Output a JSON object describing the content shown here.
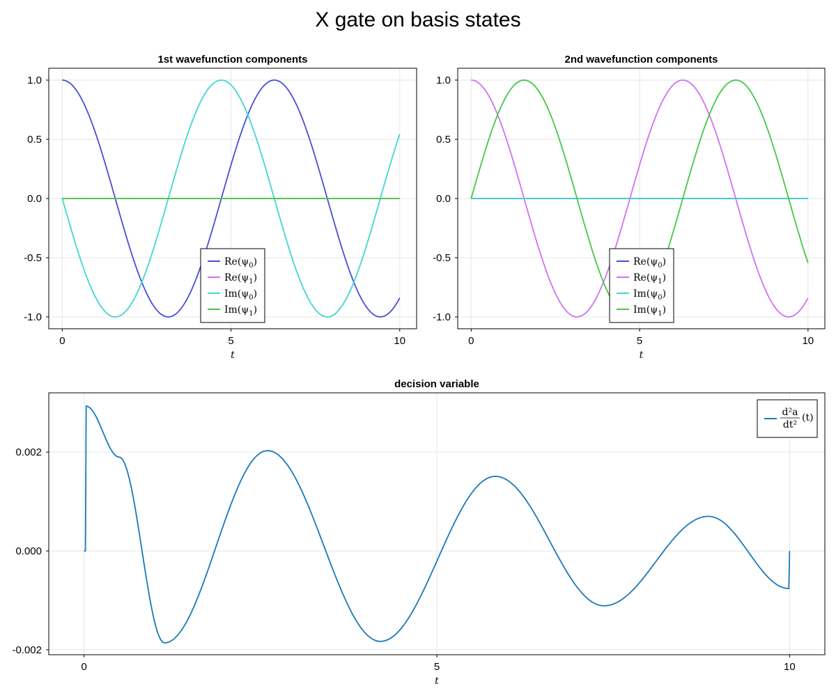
{
  "figure": {
    "title": "X gate on basis states"
  },
  "chart_data": [
    {
      "type": "line",
      "title": "1st wavefunction components",
      "xlabel": "t",
      "ylabel": "",
      "xlim": [
        -0.4,
        10.5
      ],
      "ylim": [
        -1.1,
        1.1
      ],
      "xticks": [
        0,
        5,
        10
      ],
      "yticks": [
        1.0,
        0.5,
        0.0,
        -0.5,
        -1.0
      ],
      "ytick_labels": [
        "1.0",
        "0.5",
        "0.0",
        "-0.5",
        "-1.0"
      ],
      "grid": true,
      "legend": {
        "placement": "lower-center"
      },
      "x_range": [
        0,
        10
      ],
      "series": [
        {
          "name": "Re(ψ₀)",
          "color": "#4b4bd6",
          "formula": "cos(t)",
          "x": [
            0,
            1,
            2,
            3,
            4,
            5,
            6,
            7,
            8,
            9,
            10
          ],
          "y": [
            1.0,
            0.54,
            -0.42,
            -0.99,
            -0.65,
            0.28,
            0.96,
            0.75,
            -0.15,
            -0.91,
            -0.84
          ]
        },
        {
          "name": "Re(ψ₁)",
          "color": "#d070f5",
          "formula": "0",
          "x": [
            0,
            10
          ],
          "y": [
            0,
            0
          ]
        },
        {
          "name": "Im(ψ₀)",
          "color": "#3fd6d2",
          "formula": "-sin(t)",
          "x": [
            0,
            1,
            2,
            3,
            4,
            5,
            6,
            7,
            8,
            9,
            10
          ],
          "y": [
            0.0,
            -0.84,
            -0.91,
            -0.14,
            0.76,
            0.96,
            0.28,
            -0.66,
            -0.99,
            -0.41,
            0.54
          ]
        },
        {
          "name": "Im(ψ₁)",
          "color": "#44c844",
          "formula": "0",
          "x": [
            0,
            10
          ],
          "y": [
            0,
            0
          ]
        }
      ]
    },
    {
      "type": "line",
      "title": "2nd wavefunction components",
      "xlabel": "t",
      "ylabel": "",
      "xlim": [
        -0.4,
        10.5
      ],
      "ylim": [
        -1.1,
        1.1
      ],
      "xticks": [
        0,
        5,
        10
      ],
      "yticks": [
        1.0,
        0.5,
        0.0,
        -0.5,
        -1.0
      ],
      "ytick_labels": [
        "1.0",
        "0.5",
        "0.0",
        "-0.5",
        "-1.0"
      ],
      "grid": true,
      "legend": {
        "placement": "lower-center"
      },
      "x_range": [
        0,
        10
      ],
      "series": [
        {
          "name": "Re(ψ₀)",
          "color": "#4b4bd6",
          "formula": "0",
          "x": [
            0,
            10
          ],
          "y": [
            0,
            0
          ]
        },
        {
          "name": "Re(ψ₁)",
          "color": "#d070f5",
          "formula": "cos(t)",
          "x": [
            0,
            1,
            2,
            3,
            4,
            5,
            6,
            7,
            8,
            9,
            10
          ],
          "y": [
            1.0,
            0.54,
            -0.42,
            -0.99,
            -0.65,
            0.28,
            0.96,
            0.75,
            -0.15,
            -0.91,
            -0.84
          ]
        },
        {
          "name": "Im(ψ₀)",
          "color": "#3fd6d2",
          "formula": "0",
          "x": [
            0,
            10
          ],
          "y": [
            0,
            0
          ]
        },
        {
          "name": "Im(ψ₁)",
          "color": "#44c844",
          "formula": "sin(t)",
          "x": [
            0,
            1,
            2,
            3,
            4,
            5,
            6,
            7,
            8,
            9,
            10
          ],
          "y": [
            0.0,
            0.84,
            0.91,
            0.14,
            -0.76,
            -0.96,
            -0.28,
            0.66,
            0.99,
            0.41,
            -0.54
          ]
        }
      ]
    },
    {
      "type": "line",
      "title": "decision variable",
      "xlabel": "t",
      "ylabel": "",
      "xlim": [
        -0.5,
        10.5
      ],
      "ylim": [
        -0.0021,
        0.0032
      ],
      "xticks": [
        0,
        5,
        10
      ],
      "yticks": [
        0.002,
        0.0,
        -0.002
      ],
      "ytick_labels": [
        "0.002",
        "0.000",
        "-0.002"
      ],
      "grid": true,
      "legend": {
        "placement": "top-right"
      },
      "series": [
        {
          "name": "d²a/dt²(t)",
          "color": "#1a78b8",
          "x": [
            0.0,
            0.02,
            0.03,
            0.5,
            1.14,
            2.6,
            4.2,
            5.83,
            7.37,
            8.85,
            9.99,
            10.0
          ],
          "y": [
            0.0,
            0.0,
            0.00293,
            0.0019,
            -0.00186,
            0.00203,
            -0.00183,
            0.00151,
            -0.00111,
            0.0007,
            -0.00076,
            0.0
          ]
        }
      ]
    }
  ]
}
